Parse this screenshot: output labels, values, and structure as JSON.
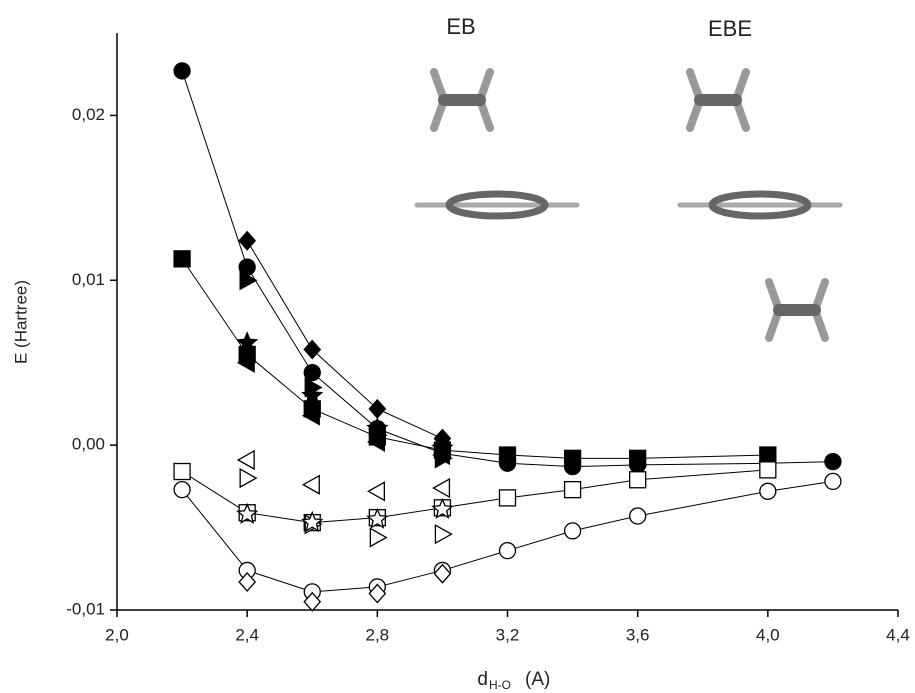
{
  "chart_data": {
    "type": "scatter",
    "xlabel": {
      "main": "d",
      "sub": "H-O",
      "rest": "(A)"
    },
    "ylabel": "E (Hartree)",
    "annotations": [
      "EB",
      "EBE"
    ],
    "xlim": [
      2.0,
      4.4
    ],
    "xticks": [
      {
        "value": 2.0,
        "label": "2,0"
      },
      {
        "value": 2.4,
        "label": "2,4"
      },
      {
        "value": 2.8,
        "label": "2,8"
      },
      {
        "value": 3.2,
        "label": "3,2"
      },
      {
        "value": 3.6,
        "label": "3,6"
      },
      {
        "value": 4.0,
        "label": "4,0"
      },
      {
        "value": 4.4,
        "label": "4,4"
      }
    ],
    "ylim": [
      -0.01,
      0.025
    ],
    "yticks": [
      {
        "value": -0.01,
        "label": "-0,01"
      },
      {
        "value": 0.0,
        "label": "0,00"
      },
      {
        "value": 0.01,
        "label": "0,01"
      },
      {
        "value": 0.02,
        "label": "0,02"
      }
    ],
    "series": [
      {
        "color": "#000000",
        "marker": "circle",
        "filled": true,
        "line": true,
        "x": [
          2.2,
          2.4,
          2.6,
          2.8,
          3.0,
          3.2,
          3.4,
          3.6,
          4.0,
          4.2
        ],
        "values": [
          0.0227,
          0.0108,
          0.0044,
          0.001,
          -0.0005,
          -0.0011,
          -0.0013,
          -0.0012,
          -0.0011,
          -0.001
        ]
      },
      {
        "color": "#000000",
        "marker": "square",
        "filled": true,
        "line": true,
        "x": [
          2.2,
          2.4,
          2.6,
          2.8,
          3.0,
          3.2,
          3.4,
          3.6,
          4.0
        ],
        "values": [
          0.0113,
          0.0055,
          0.0022,
          0.0005,
          -0.0003,
          -0.0006,
          -0.0008,
          -0.0008,
          -0.0006
        ]
      },
      {
        "color": "#000000",
        "marker": "diamond",
        "filled": true,
        "line": true,
        "x": [
          2.4,
          2.6,
          2.8,
          3.0
        ],
        "values": [
          0.0124,
          0.0058,
          0.0022,
          0.0004
        ]
      },
      {
        "color": "#000000",
        "marker": "triangle-right",
        "filled": true,
        "line": false,
        "x": [
          2.4,
          2.6,
          2.8,
          3.0
        ],
        "values": [
          0.01,
          0.0035,
          0.0006,
          -0.0008
        ]
      },
      {
        "color": "#000000",
        "marker": "star",
        "filled": true,
        "line": false,
        "x": [
          2.4,
          2.6,
          2.8,
          3.0
        ],
        "values": [
          0.0062,
          0.003,
          0.001,
          -0.0002
        ]
      },
      {
        "color": "#000000",
        "marker": "triangle-left",
        "filled": true,
        "line": false,
        "x": [
          2.4,
          2.6,
          2.8,
          3.0
        ],
        "values": [
          0.005,
          0.0018,
          0.0002,
          -0.0006
        ]
      },
      {
        "color": "#000000",
        "marker": "square",
        "filled": false,
        "line": true,
        "x": [
          2.2,
          2.4,
          2.6,
          2.8,
          3.0,
          3.2,
          3.4,
          3.6,
          4.0
        ],
        "values": [
          -0.0016,
          -0.0041,
          -0.0047,
          -0.0044,
          -0.0038,
          -0.0032,
          -0.0027,
          -0.0021,
          -0.0015
        ]
      },
      {
        "color": "#000000",
        "marker": "circle",
        "filled": false,
        "line": true,
        "x": [
          2.2,
          2.4,
          2.6,
          2.8,
          3.0,
          3.2,
          3.4,
          3.6,
          4.0,
          4.2
        ],
        "values": [
          -0.0027,
          -0.0076,
          -0.0089,
          -0.0086,
          -0.0076,
          -0.0064,
          -0.0052,
          -0.0043,
          -0.0028,
          -0.0022
        ]
      },
      {
        "color": "#000000",
        "marker": "diamond",
        "filled": false,
        "line": false,
        "x": [
          2.4,
          2.6,
          2.8,
          3.0
        ],
        "values": [
          -0.0083,
          -0.0095,
          -0.009,
          -0.0078
        ]
      },
      {
        "color": "#000000",
        "marker": "triangle-left",
        "filled": false,
        "line": false,
        "x": [
          2.4,
          2.6,
          2.8,
          3.0
        ],
        "values": [
          -0.0009,
          -0.0024,
          -0.0028,
          -0.0026
        ]
      },
      {
        "color": "#000000",
        "marker": "triangle-right",
        "filled": false,
        "line": false,
        "x": [
          2.4,
          2.6,
          2.8,
          3.0
        ],
        "values": [
          -0.002,
          -0.0048,
          -0.0056,
          -0.0054
        ]
      },
      {
        "color": "#000000",
        "marker": "star",
        "filled": false,
        "line": false,
        "x": [
          2.4,
          2.6,
          2.8,
          3.0
        ],
        "values": [
          -0.0042,
          -0.0047,
          -0.0045,
          -0.0039
        ]
      }
    ]
  }
}
